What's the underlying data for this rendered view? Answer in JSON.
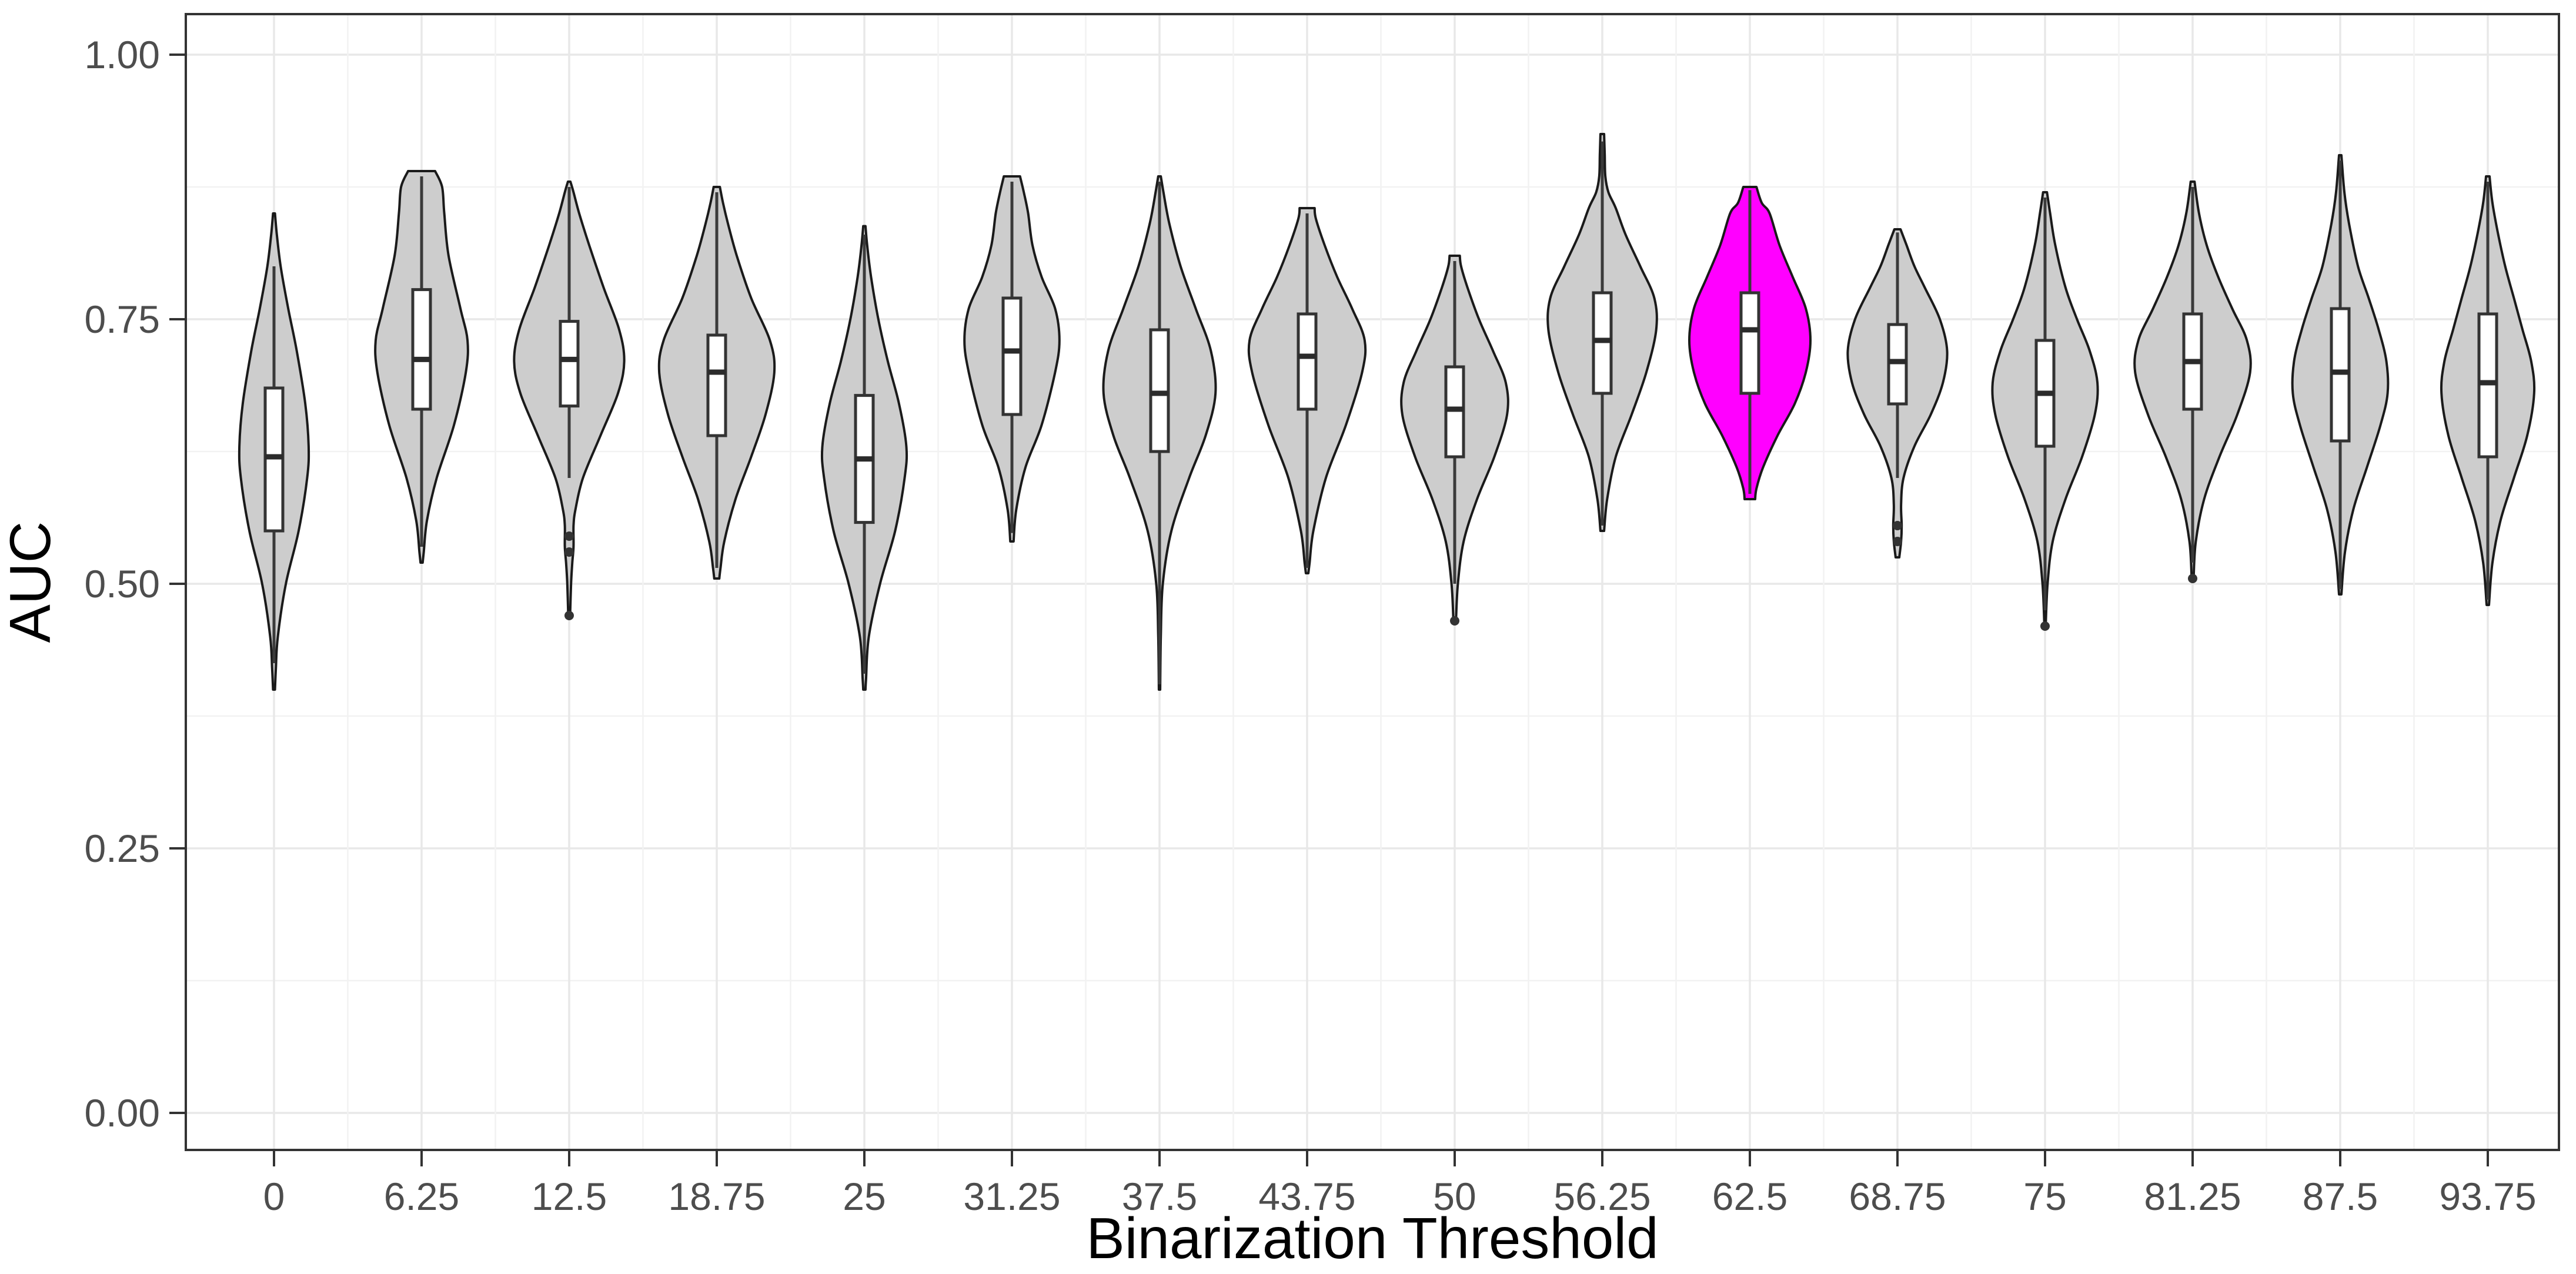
{
  "figure": {
    "background": "#ffffff",
    "panel_background": "#ffffff",
    "panel_border_color": "#333333",
    "grid_major_color": "#e8e8e8",
    "grid_minor_color": "#f2f2f2",
    "tick_color": "#333333",
    "tick_label_color": "#4d4d4d",
    "axis_title_color": "#000000"
  },
  "chart_data": {
    "type": "violin",
    "title": "",
    "xlabel": "Binarization Threshold",
    "ylabel": "AUC",
    "legend": "none",
    "grid": "major+minor",
    "ylim": [
      -0.035,
      1.035
    ],
    "y_ticks": [
      0.0,
      0.25,
      0.5,
      0.75,
      1.0
    ],
    "y_tick_labels": [
      "0.00",
      "0.25",
      "0.50",
      "0.75",
      "1.00"
    ],
    "y_minor_ticks": [
      0.125,
      0.375,
      0.625,
      0.875
    ],
    "categories": [
      "0",
      "6.25",
      "12.5",
      "18.75",
      "25",
      "31.25",
      "37.5",
      "43.75",
      "50",
      "56.25",
      "62.5",
      "68.75",
      "75",
      "81.25",
      "87.5",
      "93.75"
    ],
    "default_fill": "#cdcdcd",
    "highlight_fill": "#ff00ff",
    "outline_color": "#1a1a1a",
    "box_fill": "#ffffff",
    "box_stroke": "#333333",
    "highlighted_category": "62.5",
    "violins": [
      {
        "label": "0",
        "highlight": false,
        "width": 0.72,
        "stats": {
          "min": 0.4,
          "q1": 0.55,
          "median": 0.62,
          "q3": 0.685,
          "max": 0.85
        },
        "whiskers": {
          "low": 0.425,
          "high": 0.8
        },
        "outliers": [],
        "shape": [
          [
            0.85,
            0.02
          ],
          [
            0.83,
            0.06
          ],
          [
            0.8,
            0.14
          ],
          [
            0.76,
            0.3
          ],
          [
            0.72,
            0.48
          ],
          [
            0.67,
            0.66
          ],
          [
            0.63,
            0.73
          ],
          [
            0.6,
            0.7
          ],
          [
            0.55,
            0.52
          ],
          [
            0.5,
            0.25
          ],
          [
            0.45,
            0.08
          ],
          [
            0.42,
            0.04
          ],
          [
            0.4,
            0.02
          ]
        ]
      },
      {
        "label": "6.25",
        "highlight": false,
        "width": 0.82,
        "stats": {
          "min": 0.52,
          "q1": 0.665,
          "median": 0.712,
          "q3": 0.778,
          "max": 0.89
        },
        "whiskers": {
          "low": 0.535,
          "high": 0.885
        },
        "outliers": [],
        "shape": [
          [
            0.89,
            0.25
          ],
          [
            0.875,
            0.38
          ],
          [
            0.85,
            0.42
          ],
          [
            0.81,
            0.5
          ],
          [
            0.76,
            0.72
          ],
          [
            0.73,
            0.85
          ],
          [
            0.7,
            0.82
          ],
          [
            0.65,
            0.6
          ],
          [
            0.6,
            0.28
          ],
          [
            0.56,
            0.1
          ],
          [
            0.53,
            0.04
          ],
          [
            0.52,
            0.02
          ]
        ]
      },
      {
        "label": "12.5",
        "highlight": false,
        "width": 0.95,
        "stats": {
          "min": 0.47,
          "q1": 0.668,
          "median": 0.712,
          "q3": 0.748,
          "max": 0.88
        },
        "whiskers": {
          "low": 0.6,
          "high": 0.875
        },
        "outliers": [
          0.545,
          0.53,
          0.47
        ],
        "shape": [
          [
            0.88,
            0.02
          ],
          [
            0.87,
            0.07
          ],
          [
            0.85,
            0.16
          ],
          [
            0.82,
            0.32
          ],
          [
            0.78,
            0.55
          ],
          [
            0.74,
            0.8
          ],
          [
            0.71,
            0.88
          ],
          [
            0.68,
            0.78
          ],
          [
            0.64,
            0.5
          ],
          [
            0.6,
            0.22
          ],
          [
            0.57,
            0.1
          ],
          [
            0.555,
            0.07
          ],
          [
            0.535,
            0.07
          ],
          [
            0.52,
            0.05
          ],
          [
            0.5,
            0.03
          ],
          [
            0.47,
            0.015
          ]
        ]
      },
      {
        "label": "18.75",
        "highlight": false,
        "width": 0.95,
        "stats": {
          "min": 0.505,
          "q1": 0.64,
          "median": 0.7,
          "q3": 0.735,
          "max": 0.875
        },
        "whiskers": {
          "low": 0.515,
          "high": 0.87
        },
        "outliers": [],
        "shape": [
          [
            0.875,
            0.05
          ],
          [
            0.86,
            0.1
          ],
          [
            0.84,
            0.18
          ],
          [
            0.81,
            0.32
          ],
          [
            0.77,
            0.55
          ],
          [
            0.73,
            0.85
          ],
          [
            0.7,
            0.92
          ],
          [
            0.66,
            0.78
          ],
          [
            0.62,
            0.55
          ],
          [
            0.58,
            0.3
          ],
          [
            0.54,
            0.12
          ],
          [
            0.515,
            0.06
          ],
          [
            0.505,
            0.04
          ]
        ]
      },
      {
        "label": "25",
        "highlight": false,
        "width": 0.85,
        "stats": {
          "min": 0.4,
          "q1": 0.558,
          "median": 0.618,
          "q3": 0.678,
          "max": 0.838
        },
        "whiskers": {
          "low": 0.415,
          "high": 0.83
        },
        "outliers": [],
        "shape": [
          [
            0.838,
            0.02
          ],
          [
            0.82,
            0.05
          ],
          [
            0.79,
            0.12
          ],
          [
            0.75,
            0.25
          ],
          [
            0.71,
            0.42
          ],
          [
            0.67,
            0.62
          ],
          [
            0.63,
            0.75
          ],
          [
            0.6,
            0.72
          ],
          [
            0.55,
            0.55
          ],
          [
            0.5,
            0.28
          ],
          [
            0.45,
            0.08
          ],
          [
            0.41,
            0.03
          ],
          [
            0.4,
            0.02
          ]
        ]
      },
      {
        "label": "31.25",
        "highlight": false,
        "width": 0.82,
        "stats": {
          "min": 0.54,
          "q1": 0.66,
          "median": 0.72,
          "q3": 0.77,
          "max": 0.885
        },
        "whiskers": {
          "low": 0.548,
          "high": 0.88
        },
        "outliers": [],
        "shape": [
          [
            0.885,
            0.15
          ],
          [
            0.87,
            0.22
          ],
          [
            0.85,
            0.3
          ],
          [
            0.82,
            0.38
          ],
          [
            0.79,
            0.55
          ],
          [
            0.76,
            0.8
          ],
          [
            0.73,
            0.88
          ],
          [
            0.7,
            0.8
          ],
          [
            0.65,
            0.55
          ],
          [
            0.61,
            0.25
          ],
          [
            0.57,
            0.08
          ],
          [
            0.54,
            0.03
          ]
        ]
      },
      {
        "label": "37.5",
        "highlight": false,
        "width": 1.0,
        "stats": {
          "min": 0.4,
          "q1": 0.625,
          "median": 0.68,
          "q3": 0.74,
          "max": 0.885
        },
        "whiskers": {
          "low": 0.405,
          "high": 0.88
        },
        "outliers": [],
        "shape": [
          [
            0.885,
            0.02
          ],
          [
            0.87,
            0.06
          ],
          [
            0.84,
            0.15
          ],
          [
            0.8,
            0.32
          ],
          [
            0.76,
            0.55
          ],
          [
            0.72,
            0.78
          ],
          [
            0.68,
            0.85
          ],
          [
            0.64,
            0.7
          ],
          [
            0.6,
            0.45
          ],
          [
            0.55,
            0.18
          ],
          [
            0.5,
            0.05
          ],
          [
            0.45,
            0.02
          ],
          [
            0.4,
            0.01
          ]
        ]
      },
      {
        "label": "43.75",
        "highlight": false,
        "width": 0.95,
        "stats": {
          "min": 0.51,
          "q1": 0.665,
          "median": 0.715,
          "q3": 0.755,
          "max": 0.855
        },
        "whiskers": {
          "low": 0.515,
          "high": 0.85
        },
        "outliers": [],
        "shape": [
          [
            0.855,
            0.12
          ],
          [
            0.845,
            0.14
          ],
          [
            0.82,
            0.28
          ],
          [
            0.79,
            0.48
          ],
          [
            0.76,
            0.72
          ],
          [
            0.73,
            0.92
          ],
          [
            0.7,
            0.88
          ],
          [
            0.65,
            0.62
          ],
          [
            0.6,
            0.3
          ],
          [
            0.55,
            0.1
          ],
          [
            0.52,
            0.04
          ],
          [
            0.51,
            0.02
          ]
        ]
      },
      {
        "label": "50",
        "highlight": false,
        "width": 0.97,
        "stats": {
          "min": 0.465,
          "q1": 0.62,
          "median": 0.665,
          "q3": 0.705,
          "max": 0.81
        },
        "whiskers": {
          "low": 0.5,
          "high": 0.805
        },
        "outliers": [
          0.465
        ],
        "shape": [
          [
            0.81,
            0.08
          ],
          [
            0.8,
            0.1
          ],
          [
            0.78,
            0.2
          ],
          [
            0.75,
            0.38
          ],
          [
            0.72,
            0.6
          ],
          [
            0.69,
            0.8
          ],
          [
            0.66,
            0.82
          ],
          [
            0.62,
            0.62
          ],
          [
            0.58,
            0.35
          ],
          [
            0.54,
            0.14
          ],
          [
            0.5,
            0.05
          ],
          [
            0.465,
            0.02
          ]
        ]
      },
      {
        "label": "56.25",
        "highlight": false,
        "width": 0.93,
        "stats": {
          "min": 0.55,
          "q1": 0.68,
          "median": 0.73,
          "q3": 0.775,
          "max": 0.925
        },
        "whiskers": {
          "low": 0.555,
          "high": 0.918
        },
        "outliers": [],
        "shape": [
          [
            0.925,
            0.03
          ],
          [
            0.905,
            0.04
          ],
          [
            0.885,
            0.05
          ],
          [
            0.87,
            0.1
          ],
          [
            0.855,
            0.22
          ],
          [
            0.83,
            0.38
          ],
          [
            0.8,
            0.62
          ],
          [
            0.77,
            0.85
          ],
          [
            0.74,
            0.88
          ],
          [
            0.7,
            0.72
          ],
          [
            0.66,
            0.48
          ],
          [
            0.62,
            0.22
          ],
          [
            0.58,
            0.08
          ],
          [
            0.55,
            0.03
          ]
        ]
      },
      {
        "label": "62.5",
        "highlight": true,
        "width": 1.0,
        "stats": {
          "min": 0.58,
          "q1": 0.68,
          "median": 0.74,
          "q3": 0.775,
          "max": 0.875
        },
        "whiskers": {
          "low": 0.585,
          "high": 0.872
        },
        "outliers": [],
        "shape": [
          [
            0.875,
            0.1
          ],
          [
            0.86,
            0.18
          ],
          [
            0.85,
            0.3
          ],
          [
            0.82,
            0.45
          ],
          [
            0.79,
            0.65
          ],
          [
            0.76,
            0.85
          ],
          [
            0.73,
            0.92
          ],
          [
            0.7,
            0.85
          ],
          [
            0.67,
            0.68
          ],
          [
            0.64,
            0.42
          ],
          [
            0.61,
            0.2
          ],
          [
            0.59,
            0.1
          ],
          [
            0.58,
            0.08
          ]
        ]
      },
      {
        "label": "68.75",
        "highlight": false,
        "width": 0.92,
        "stats": {
          "min": 0.525,
          "q1": 0.67,
          "median": 0.71,
          "q3": 0.745,
          "max": 0.835
        },
        "whiskers": {
          "low": 0.6,
          "high": 0.832
        },
        "outliers": [
          0.555,
          0.54
        ],
        "shape": [
          [
            0.835,
            0.05
          ],
          [
            0.82,
            0.15
          ],
          [
            0.8,
            0.28
          ],
          [
            0.78,
            0.45
          ],
          [
            0.75,
            0.7
          ],
          [
            0.72,
            0.82
          ],
          [
            0.69,
            0.75
          ],
          [
            0.66,
            0.55
          ],
          [
            0.63,
            0.28
          ],
          [
            0.6,
            0.1
          ],
          [
            0.575,
            0.06
          ],
          [
            0.555,
            0.07
          ],
          [
            0.54,
            0.06
          ],
          [
            0.525,
            0.03
          ]
        ]
      },
      {
        "label": "75",
        "highlight": false,
        "width": 0.97,
        "stats": {
          "min": 0.46,
          "q1": 0.63,
          "median": 0.68,
          "q3": 0.73,
          "max": 0.87
        },
        "whiskers": {
          "low": 0.475,
          "high": 0.865
        },
        "outliers": [
          0.46
        ],
        "shape": [
          [
            0.87,
            0.03
          ],
          [
            0.85,
            0.08
          ],
          [
            0.82,
            0.16
          ],
          [
            0.78,
            0.32
          ],
          [
            0.75,
            0.5
          ],
          [
            0.72,
            0.7
          ],
          [
            0.69,
            0.82
          ],
          [
            0.66,
            0.78
          ],
          [
            0.62,
            0.58
          ],
          [
            0.58,
            0.32
          ],
          [
            0.54,
            0.12
          ],
          [
            0.5,
            0.04
          ],
          [
            0.46,
            0.01
          ]
        ]
      },
      {
        "label": "81.25",
        "highlight": false,
        "width": 0.97,
        "stats": {
          "min": 0.505,
          "q1": 0.665,
          "median": 0.71,
          "q3": 0.755,
          "max": 0.88
        },
        "whiskers": {
          "low": 0.52,
          "high": 0.875
        },
        "outliers": [
          0.505
        ],
        "shape": [
          [
            0.88,
            0.03
          ],
          [
            0.85,
            0.1
          ],
          [
            0.82,
            0.22
          ],
          [
            0.79,
            0.4
          ],
          [
            0.76,
            0.62
          ],
          [
            0.73,
            0.85
          ],
          [
            0.7,
            0.9
          ],
          [
            0.66,
            0.7
          ],
          [
            0.62,
            0.42
          ],
          [
            0.58,
            0.18
          ],
          [
            0.54,
            0.05
          ],
          [
            0.505,
            0.015
          ]
        ]
      },
      {
        "label": "87.5",
        "highlight": false,
        "width": 0.9,
        "stats": {
          "min": 0.49,
          "q1": 0.635,
          "median": 0.7,
          "q3": 0.76,
          "max": 0.905
        },
        "whiskers": {
          "low": 0.495,
          "high": 0.9
        },
        "outliers": [],
        "shape": [
          [
            0.905,
            0.02
          ],
          [
            0.87,
            0.07
          ],
          [
            0.84,
            0.15
          ],
          [
            0.8,
            0.3
          ],
          [
            0.77,
            0.48
          ],
          [
            0.74,
            0.65
          ],
          [
            0.71,
            0.78
          ],
          [
            0.68,
            0.8
          ],
          [
            0.65,
            0.68
          ],
          [
            0.61,
            0.45
          ],
          [
            0.57,
            0.22
          ],
          [
            0.53,
            0.08
          ],
          [
            0.49,
            0.02
          ]
        ]
      },
      {
        "label": "93.75",
        "highlight": false,
        "width": 0.88,
        "stats": {
          "min": 0.48,
          "q1": 0.62,
          "median": 0.69,
          "q3": 0.755,
          "max": 0.885
        },
        "whiskers": {
          "low": 0.485,
          "high": 0.88
        },
        "outliers": [],
        "shape": [
          [
            0.885,
            0.03
          ],
          [
            0.86,
            0.08
          ],
          [
            0.83,
            0.18
          ],
          [
            0.8,
            0.3
          ],
          [
            0.77,
            0.45
          ],
          [
            0.74,
            0.6
          ],
          [
            0.71,
            0.75
          ],
          [
            0.68,
            0.8
          ],
          [
            0.64,
            0.68
          ],
          [
            0.6,
            0.45
          ],
          [
            0.56,
            0.22
          ],
          [
            0.52,
            0.08
          ],
          [
            0.48,
            0.02
          ]
        ]
      }
    ]
  }
}
